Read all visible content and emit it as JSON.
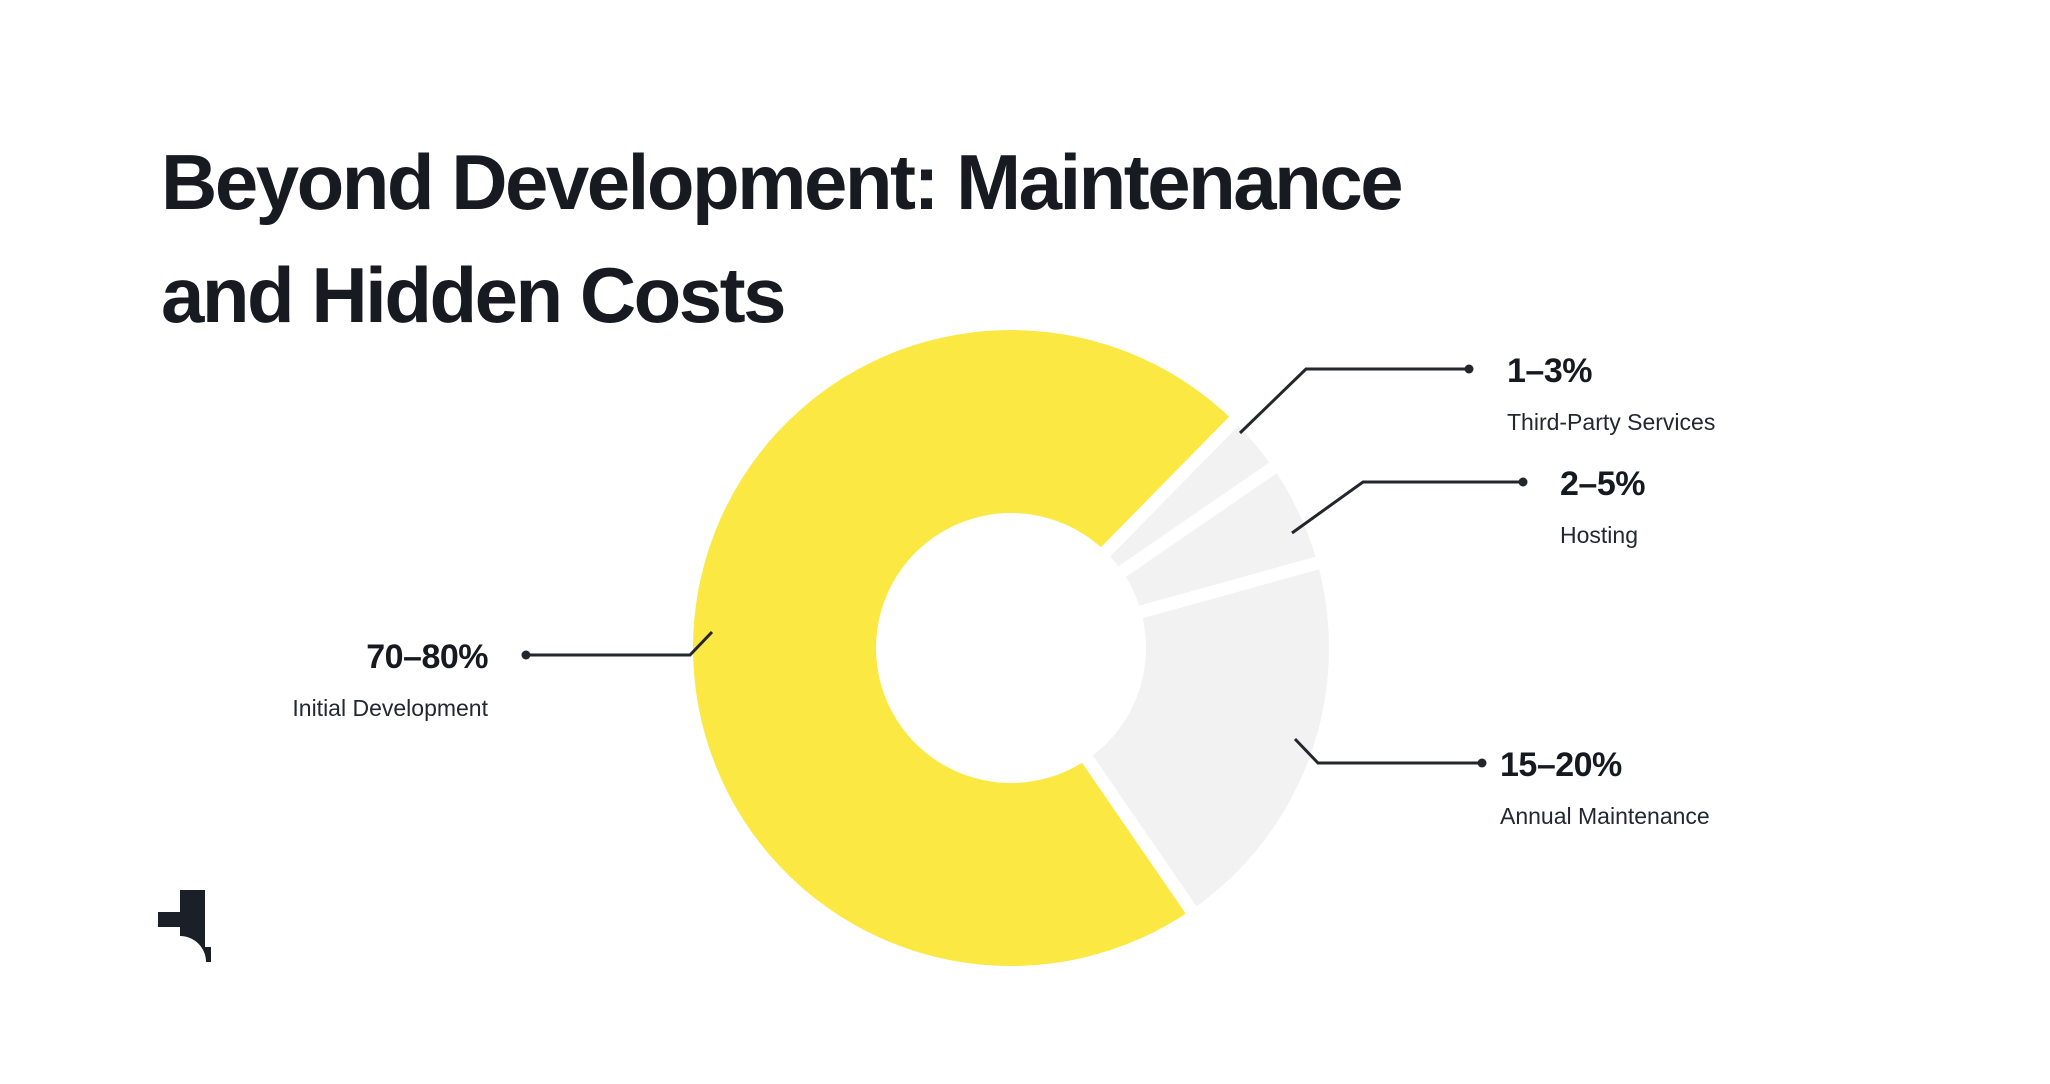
{
  "page": {
    "background_color": "#FFFFFF"
  },
  "header": {
    "title_line1": "Beyond Development: Maintenance",
    "title_line2": "and Hidden Costs",
    "title_color": "#171A21"
  },
  "chart_data": {
    "type": "pie",
    "variant": "donut",
    "title": "Beyond Development: Maintenance and Hidden Costs",
    "legend_position": "callout-labels",
    "hole_color": "#FFFFFF",
    "separator_color": "#FFFFFF",
    "line_color": "#23262B",
    "slices": [
      {
        "label": "Initial Development",
        "value_label": "70–80%",
        "value_min_pct": 70,
        "value_max_pct": 80,
        "approx_share_pct": 72,
        "color": "#FCE843",
        "start_deg": 145.5,
        "end_deg": 404.5
      },
      {
        "label": "Third-Party Services",
        "value_label": "1–3%",
        "value_min_pct": 1,
        "value_max_pct": 3,
        "approx_share_pct": 3,
        "color": "#F2F2F2",
        "start_deg": 44.5,
        "end_deg": 55.5
      },
      {
        "label": "Hosting",
        "value_label": "2–5%",
        "value_min_pct": 2,
        "value_max_pct": 5,
        "approx_share_pct": 5,
        "color": "#F2F2F2",
        "start_deg": 55.5,
        "end_deg": 74.5
      },
      {
        "label": "Annual Maintenance",
        "value_label": "15–20%",
        "value_min_pct": 15,
        "value_max_pct": 20,
        "approx_share_pct": 20,
        "color": "#F2F2F2",
        "start_deg": 74.5,
        "end_deg": 145.5
      }
    ]
  },
  "logo": {
    "name": "brand-t-logo",
    "color": "#1B1F27"
  }
}
